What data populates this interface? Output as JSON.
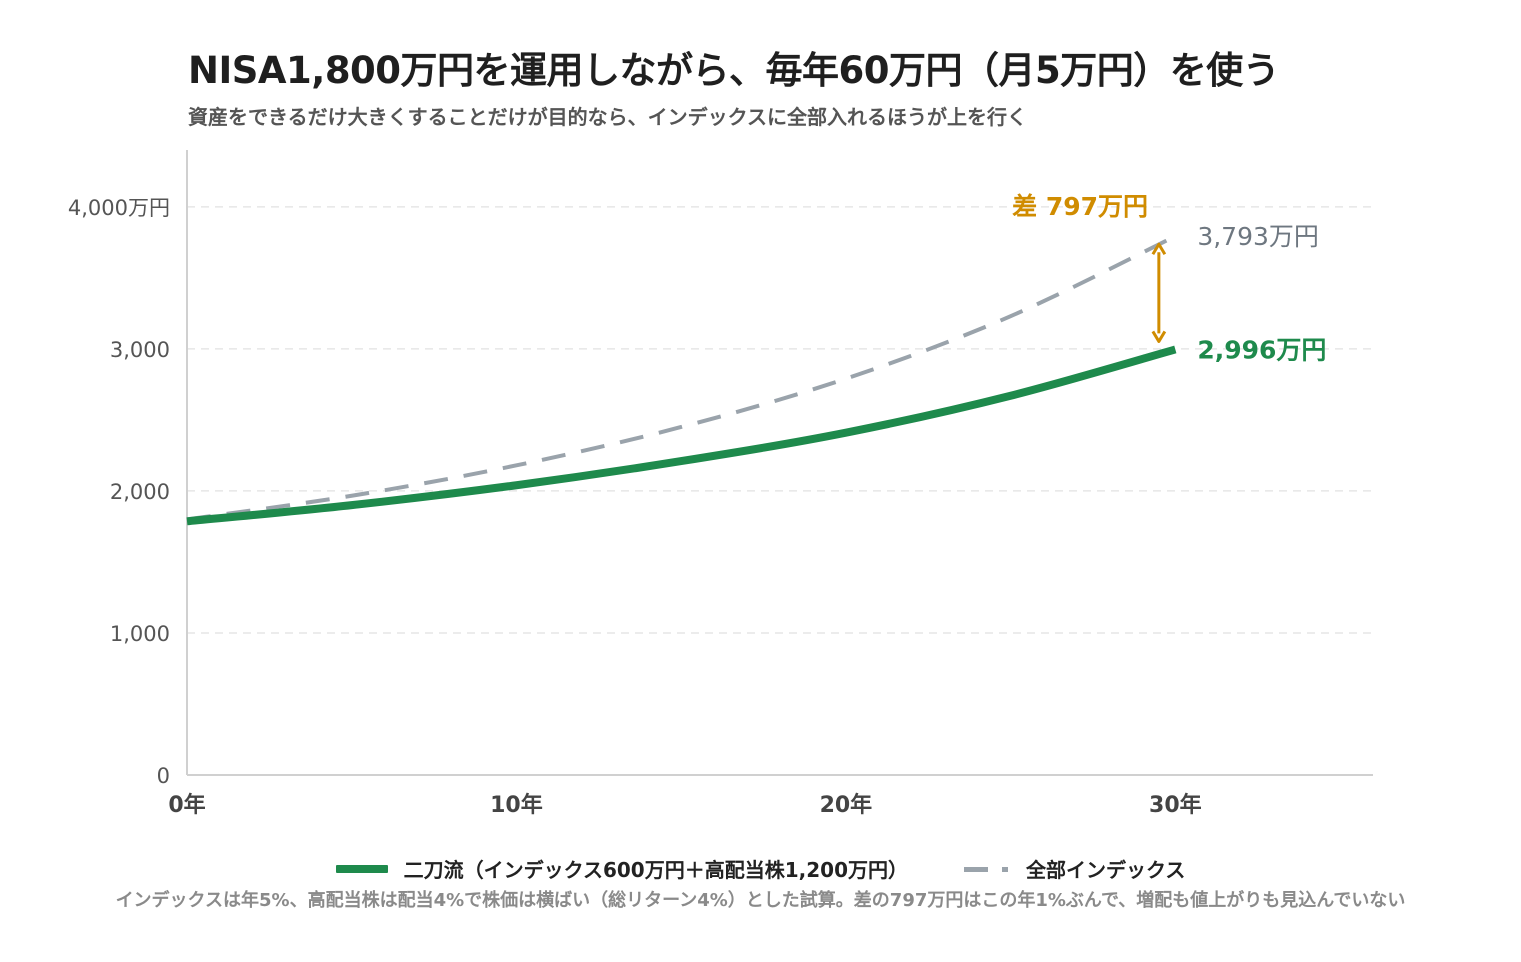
{
  "title": "NISA1,800万円を運用しながら、毎年60万円（月5万円）を使う",
  "subtitle": "資産をできるだけ大きくすることだけが目的なら、インデックスに全部入れるほうが上を行く",
  "chart_data": {
    "type": "line",
    "x_ticks": [
      "0年",
      "10年",
      "20年",
      "30年"
    ],
    "y_ticks": [
      "0",
      "1,000",
      "2,000",
      "3,000",
      "4,000万円"
    ],
    "xlim": [
      0,
      36
    ],
    "ylim": [
      0,
      4400
    ],
    "grid": true,
    "series": [
      {
        "name": "二刀流（インデックス600万円＋高配当株1,200万円）",
        "style": "solid",
        "color": "#1e8a4c",
        "x": [
          0,
          5,
          10,
          15,
          20,
          25,
          30
        ],
        "values": [
          1786,
          1900,
          2040,
          2210,
          2410,
          2670,
          2996
        ],
        "end_label": "2,996万円"
      },
      {
        "name": "全部インデックス",
        "style": "dashed",
        "color": "#9aa3ab",
        "x": [
          0,
          5,
          10,
          15,
          20,
          25,
          30
        ],
        "values": [
          1800,
          1966,
          2180,
          2450,
          2790,
          3230,
          3793
        ],
        "end_label": "3,793万円"
      }
    ],
    "annotation": {
      "text": "差 797万円",
      "color": "#d08c00",
      "x": 29.5,
      "y_from": 3793,
      "y_to": 2996
    },
    "legend_position": "bottom"
  },
  "footnote": "インデックスは年5%、高配当株は配当4%で株価は横ばい（総リターン4%）とした試算。差の797万円はこの年1%ぶんで、増配も値上がりも見込んでいない"
}
